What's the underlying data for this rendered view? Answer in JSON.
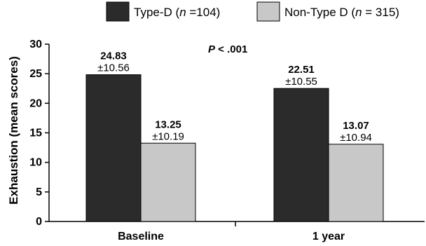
{
  "chart_data": {
    "type": "bar",
    "title": "",
    "ylabel": "Exhaustion (mean scores)",
    "xlabel": "",
    "ylim": [
      0,
      30
    ],
    "yticks": [
      0,
      5,
      10,
      15,
      20,
      25,
      30
    ],
    "grid": false,
    "legend_position": "top",
    "categories": [
      "Baseline",
      "1 year"
    ],
    "series": [
      {
        "name": "Type-D",
        "legend_label": {
          "pre": "Type-D (",
          "n_italic": "n",
          "post": " =104)"
        },
        "color": "#2b2b2b",
        "values": [
          24.83,
          22.51
        ],
        "value_labels": [
          "24.83",
          "22.51"
        ],
        "sd_labels": [
          "±10.56",
          "±10.55"
        ]
      },
      {
        "name": "Non-Type D",
        "legend_label": {
          "pre": "Non-Type D (",
          "n_italic": "n",
          "post": " = 315)"
        },
        "color": "#c8c8c8",
        "values": [
          13.25,
          13.07
        ],
        "value_labels": [
          "13.25",
          "13.07"
        ],
        "sd_labels": [
          "±10.19",
          "±10.94"
        ]
      }
    ],
    "annotation": {
      "italic": "P",
      "rest": " < .001"
    }
  }
}
